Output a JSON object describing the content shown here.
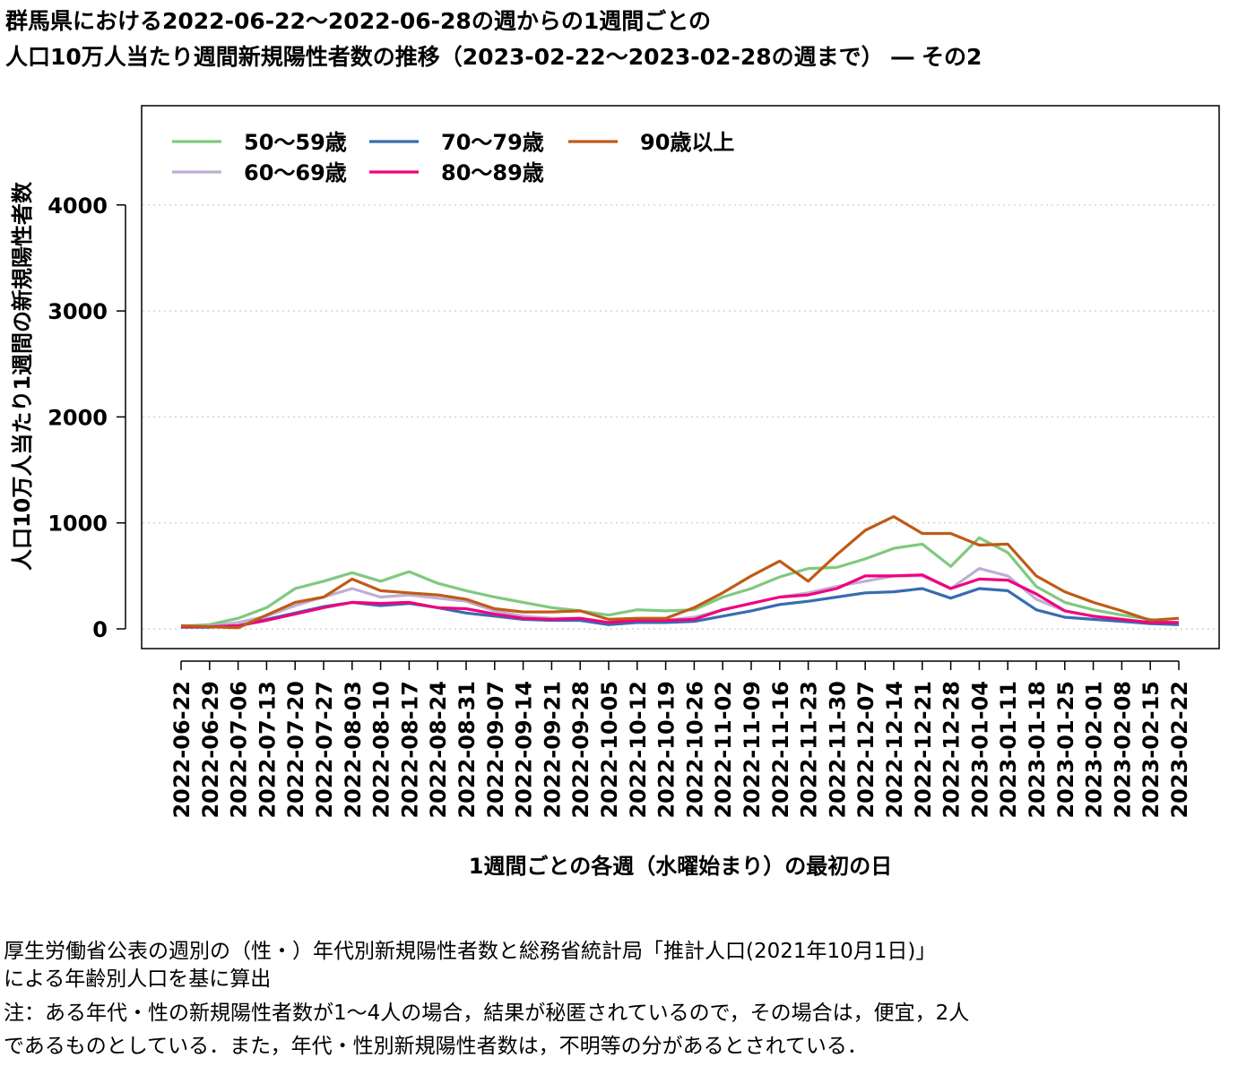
{
  "title_line1": "群馬県における2022-06-22～2022-06-28の週からの1週間ごとの",
  "title_line2": "人口10万人当たり週間新規陽性者数の推移（2023-02-22～2023-02-28の週まで） ― その2",
  "notes": [
    "厚生労働省公表の週別の（性・）年代別新規陽性者数と総務省統計局「推計人口(2021年10月1日)」",
    "による年齢別人口を基に算出",
    "注：ある年代・性の新規陽性者数が1～4人の場合，結果が秘匿されているので，その場合は，便宜，2人",
    "であるものとしている．また，年代・性別新規陽性者数は，不明等の分があるとされている．"
  ],
  "chart_data": {
    "type": "line",
    "xlabel": "1週間ごとの各週（水曜始まり）の最初の日",
    "ylabel": "人口10万人当たり1週間の新規陽性者数",
    "ylim": [
      0,
      4900
    ],
    "yticks": [
      0,
      1000,
      2000,
      3000,
      4000
    ],
    "grid": "horizontal dotted",
    "legend_position": "top-left",
    "x": [
      "2022-06-22",
      "2022-06-29",
      "2022-07-06",
      "2022-07-13",
      "2022-07-20",
      "2022-07-27",
      "2022-08-03",
      "2022-08-10",
      "2022-08-17",
      "2022-08-24",
      "2022-08-31",
      "2022-09-07",
      "2022-09-14",
      "2022-09-21",
      "2022-09-28",
      "2022-10-05",
      "2022-10-12",
      "2022-10-19",
      "2022-10-26",
      "2022-11-02",
      "2022-11-09",
      "2022-11-16",
      "2022-11-23",
      "2022-11-30",
      "2022-12-07",
      "2022-12-14",
      "2022-12-21",
      "2022-12-28",
      "2023-01-04",
      "2023-01-11",
      "2023-01-18",
      "2023-01-25",
      "2023-02-01",
      "2023-02-08",
      "2023-02-15",
      "2023-02-22"
    ],
    "series": [
      {
        "name": "50～59歳",
        "color": "#7fc97f",
        "values": [
          25,
          40,
          100,
          200,
          380,
          450,
          530,
          450,
          540,
          430,
          360,
          300,
          250,
          200,
          170,
          130,
          180,
          170,
          180,
          300,
          380,
          490,
          570,
          580,
          660,
          760,
          800,
          590,
          860,
          720,
          400,
          250,
          180,
          130,
          90,
          50
        ]
      },
      {
        "name": "60～69歳",
        "color": "#beaed4",
        "values": [
          20,
          25,
          60,
          120,
          220,
          300,
          380,
          300,
          320,
          290,
          260,
          170,
          120,
          100,
          100,
          60,
          90,
          80,
          110,
          180,
          240,
          300,
          340,
          400,
          450,
          500,
          500,
          380,
          570,
          500,
          280,
          170,
          120,
          90,
          60,
          40
        ]
      },
      {
        "name": "70～79歳",
        "color": "#386cb0",
        "values": [
          15,
          15,
          30,
          90,
          150,
          210,
          250,
          220,
          240,
          200,
          150,
          120,
          90,
          80,
          80,
          40,
          60,
          60,
          70,
          120,
          170,
          230,
          260,
          300,
          340,
          350,
          380,
          290,
          380,
          360,
          180,
          110,
          90,
          70,
          50,
          40
        ]
      },
      {
        "name": "80～89歳",
        "color": "#f0027f",
        "values": [
          20,
          20,
          30,
          80,
          140,
          200,
          250,
          240,
          250,
          200,
          190,
          140,
          100,
          90,
          100,
          60,
          80,
          80,
          90,
          180,
          240,
          300,
          320,
          380,
          500,
          500,
          510,
          380,
          470,
          460,
          330,
          170,
          120,
          90,
          60,
          60
        ]
      },
      {
        "name": "90歳以上",
        "color": "#bf5b17",
        "values": [
          30,
          20,
          10,
          130,
          250,
          300,
          470,
          360,
          340,
          320,
          280,
          190,
          160,
          160,
          170,
          90,
          100,
          100,
          200,
          340,
          500,
          640,
          450,
          700,
          930,
          1060,
          900,
          900,
          790,
          800,
          500,
          350,
          250,
          170,
          80,
          100
        ]
      }
    ]
  }
}
